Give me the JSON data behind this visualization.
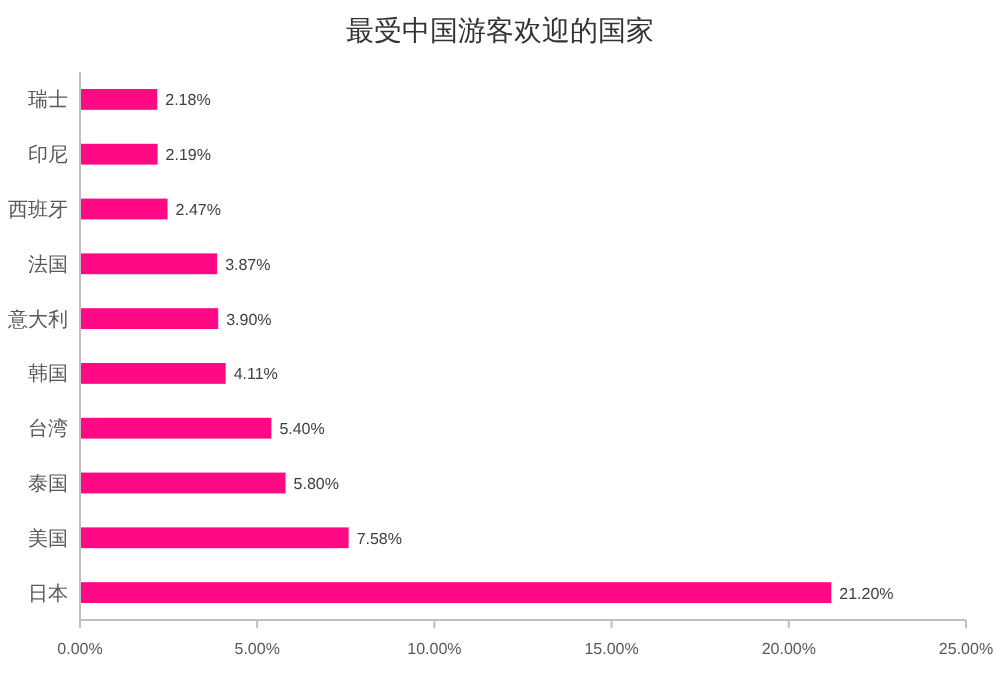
{
  "chart_data": {
    "type": "bar",
    "orientation": "horizontal",
    "title": "最受中国游客欢迎的国家",
    "categories": [
      "瑞士",
      "印尼",
      "西班牙",
      "法国",
      "意大利",
      "韩国",
      "台湾",
      "泰国",
      "美国",
      "日本"
    ],
    "values": [
      2.18,
      2.19,
      2.47,
      3.87,
      3.9,
      4.11,
      5.4,
      5.8,
      7.58,
      21.2
    ],
    "value_labels": [
      "2.18%",
      "2.19%",
      "2.47%",
      "3.87%",
      "3.90%",
      "4.11%",
      "5.40%",
      "5.80%",
      "7.58%",
      "21.20%"
    ],
    "color": "#ff0a84",
    "xlim": [
      0,
      25
    ],
    "xticks": [
      {
        "value": 0,
        "label": "0.00%"
      },
      {
        "value": 5,
        "label": "5.00%"
      },
      {
        "value": 10,
        "label": "10.00%"
      },
      {
        "value": 15,
        "label": "15.00%"
      },
      {
        "value": 20,
        "label": "20.00%"
      },
      {
        "value": 25,
        "label": "25.00%"
      }
    ],
    "grid": false
  }
}
